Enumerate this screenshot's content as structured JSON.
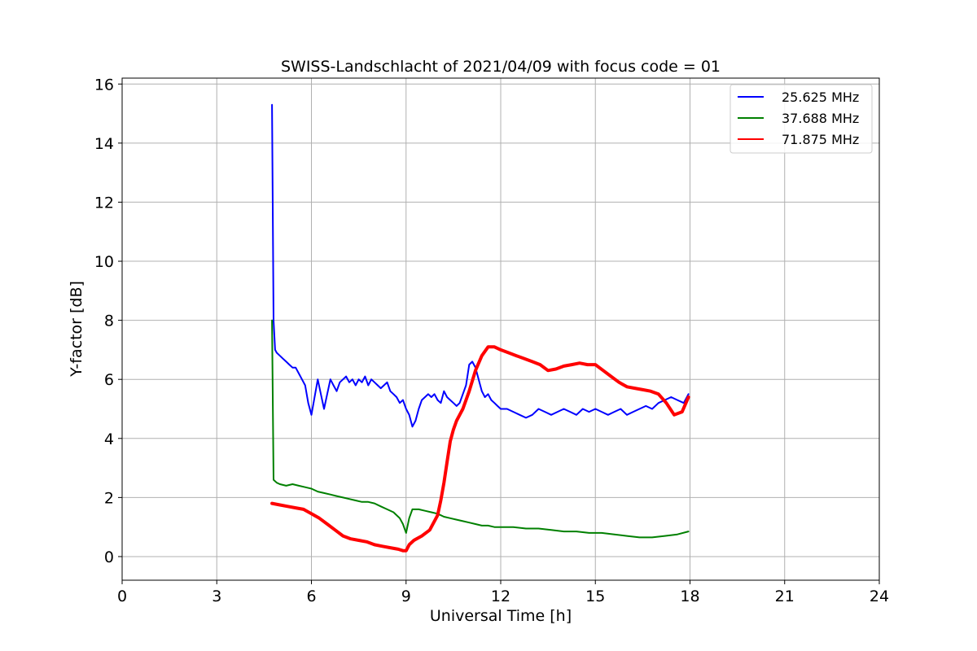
{
  "chart_data": {
    "type": "line",
    "title": "SWISS-Landschlacht of 2021/04/09 with focus code = 01",
    "xlabel": "Universal Time [h]",
    "ylabel": "Y-factor [dB]",
    "xlim": [
      0,
      24
    ],
    "ylim": [
      -0.8,
      16.2
    ],
    "xticks": [
      0,
      3,
      6,
      9,
      12,
      15,
      18,
      21,
      24
    ],
    "yticks": [
      0,
      2,
      4,
      6,
      8,
      10,
      12,
      14,
      16
    ],
    "grid": true,
    "legend_position": "top-right",
    "series": [
      {
        "name": "25.625 MHz",
        "color": "#0000ff",
        "x": [
          4.75,
          4.8,
          4.85,
          4.9,
          5.0,
          5.1,
          5.2,
          5.3,
          5.4,
          5.5,
          5.6,
          5.7,
          5.8,
          5.9,
          6.0,
          6.1,
          6.2,
          6.3,
          6.4,
          6.5,
          6.6,
          6.7,
          6.8,
          6.9,
          7.0,
          7.1,
          7.2,
          7.3,
          7.4,
          7.5,
          7.6,
          7.7,
          7.8,
          7.9,
          8.0,
          8.1,
          8.2,
          8.3,
          8.4,
          8.5,
          8.6,
          8.7,
          8.8,
          8.9,
          9.0,
          9.1,
          9.2,
          9.3,
          9.4,
          9.5,
          9.6,
          9.7,
          9.8,
          9.9,
          10.0,
          10.1,
          10.2,
          10.3,
          10.4,
          10.5,
          10.6,
          10.7,
          10.8,
          10.9,
          11.0,
          11.1,
          11.2,
          11.3,
          11.4,
          11.5,
          11.6,
          11.7,
          11.8,
          11.9,
          12.0,
          12.2,
          12.4,
          12.6,
          12.8,
          13.0,
          13.2,
          13.4,
          13.6,
          13.8,
          14.0,
          14.2,
          14.4,
          14.6,
          14.8,
          15.0,
          15.2,
          15.4,
          15.6,
          15.8,
          16.0,
          16.2,
          16.4,
          16.6,
          16.8,
          17.0,
          17.2,
          17.4,
          17.6,
          17.8,
          17.95
        ],
        "values": [
          15.3,
          8.0,
          7.0,
          6.9,
          6.8,
          6.7,
          6.6,
          6.5,
          6.4,
          6.4,
          6.2,
          6.0,
          5.8,
          5.2,
          4.8,
          5.4,
          6.0,
          5.5,
          5.0,
          5.5,
          6.0,
          5.8,
          5.6,
          5.9,
          6.0,
          6.1,
          5.9,
          6.0,
          5.8,
          6.0,
          5.9,
          6.1,
          5.8,
          6.0,
          5.9,
          5.8,
          5.7,
          5.8,
          5.9,
          5.6,
          5.5,
          5.4,
          5.2,
          5.3,
          5.0,
          4.8,
          4.4,
          4.6,
          5.0,
          5.3,
          5.4,
          5.5,
          5.4,
          5.5,
          5.3,
          5.2,
          5.6,
          5.4,
          5.3,
          5.2,
          5.1,
          5.2,
          5.5,
          5.8,
          6.5,
          6.6,
          6.4,
          6.0,
          5.6,
          5.4,
          5.5,
          5.3,
          5.2,
          5.1,
          5.0,
          5.0,
          4.9,
          4.8,
          4.7,
          4.8,
          5.0,
          4.9,
          4.8,
          4.9,
          5.0,
          4.9,
          4.8,
          5.0,
          4.9,
          5.0,
          4.9,
          4.8,
          4.9,
          5.0,
          4.8,
          4.9,
          5.0,
          5.1,
          5.0,
          5.2,
          5.3,
          5.4,
          5.3,
          5.2,
          5.5
        ]
      },
      {
        "name": "37.688 MHz",
        "color": "#008000",
        "x": [
          4.75,
          4.8,
          4.9,
          5.0,
          5.2,
          5.4,
          5.6,
          5.8,
          6.0,
          6.2,
          6.4,
          6.6,
          6.8,
          7.0,
          7.2,
          7.4,
          7.6,
          7.8,
          8.0,
          8.2,
          8.4,
          8.6,
          8.8,
          8.9,
          9.0,
          9.1,
          9.2,
          9.4,
          9.6,
          9.8,
          10.0,
          10.2,
          10.4,
          10.6,
          10.8,
          11.0,
          11.2,
          11.4,
          11.6,
          11.8,
          12.0,
          12.4,
          12.8,
          13.2,
          13.6,
          14.0,
          14.4,
          14.8,
          15.2,
          15.6,
          16.0,
          16.4,
          16.8,
          17.2,
          17.6,
          17.95
        ],
        "values": [
          8.0,
          2.6,
          2.5,
          2.45,
          2.4,
          2.45,
          2.4,
          2.35,
          2.3,
          2.2,
          2.15,
          2.1,
          2.05,
          2.0,
          1.95,
          1.9,
          1.85,
          1.85,
          1.8,
          1.7,
          1.6,
          1.5,
          1.3,
          1.1,
          0.8,
          1.3,
          1.6,
          1.6,
          1.55,
          1.5,
          1.45,
          1.35,
          1.3,
          1.25,
          1.2,
          1.15,
          1.1,
          1.05,
          1.05,
          1.0,
          1.0,
          1.0,
          0.95,
          0.95,
          0.9,
          0.85,
          0.85,
          0.8,
          0.8,
          0.75,
          0.7,
          0.65,
          0.65,
          0.7,
          0.75,
          0.85
        ]
      },
      {
        "name": "71.875 MHz",
        "color": "#ff0000",
        "x": [
          4.75,
          5.0,
          5.25,
          5.5,
          5.75,
          6.0,
          6.25,
          6.5,
          6.75,
          7.0,
          7.25,
          7.5,
          7.75,
          8.0,
          8.25,
          8.5,
          8.75,
          8.9,
          9.0,
          9.1,
          9.25,
          9.5,
          9.75,
          10.0,
          10.1,
          10.2,
          10.3,
          10.4,
          10.5,
          10.6,
          10.8,
          11.0,
          11.2,
          11.4,
          11.6,
          11.8,
          12.0,
          12.25,
          12.5,
          12.75,
          13.0,
          13.25,
          13.5,
          13.75,
          14.0,
          14.25,
          14.5,
          14.75,
          15.0,
          15.25,
          15.5,
          15.75,
          16.0,
          16.25,
          16.5,
          16.75,
          17.0,
          17.25,
          17.5,
          17.75,
          17.95
        ],
        "values": [
          1.8,
          1.75,
          1.7,
          1.65,
          1.6,
          1.45,
          1.3,
          1.1,
          0.9,
          0.7,
          0.6,
          0.55,
          0.5,
          0.4,
          0.35,
          0.3,
          0.25,
          0.2,
          0.2,
          0.4,
          0.55,
          0.7,
          0.9,
          1.4,
          1.9,
          2.5,
          3.2,
          3.9,
          4.3,
          4.6,
          5.0,
          5.6,
          6.3,
          6.8,
          7.1,
          7.1,
          7.0,
          6.9,
          6.8,
          6.7,
          6.6,
          6.5,
          6.3,
          6.35,
          6.45,
          6.5,
          6.55,
          6.5,
          6.5,
          6.3,
          6.1,
          5.9,
          5.75,
          5.7,
          5.65,
          5.6,
          5.5,
          5.2,
          4.8,
          4.9,
          5.4
        ]
      }
    ]
  }
}
